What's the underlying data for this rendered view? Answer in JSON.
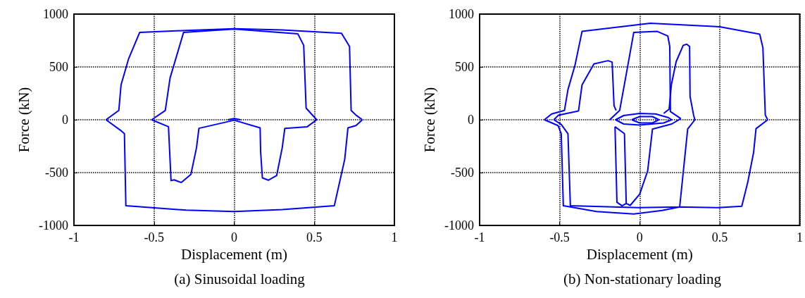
{
  "chart_data": [
    {
      "type": "line",
      "title": "(a) Sinusoidal loading",
      "xlabel": "Displacement (m)",
      "ylabel": "Force (kN)",
      "xlim": [
        -1,
        1
      ],
      "xticks": [
        -1,
        -0.5,
        0,
        0.5,
        1
      ],
      "ylim": [
        -1000,
        1000
      ],
      "yticks": [
        -1000,
        -500,
        0,
        500,
        1000
      ],
      "grid": true,
      "line_style": "solid",
      "series": [
        {
          "color": "#0000ff",
          "x": [
            -0.8,
            -0.72,
            -0.706,
            -0.66,
            -0.59,
            -0.3,
            0,
            0.3,
            0.67,
            0.72,
            0.73,
            0.76,
            0.8
          ],
          "values": [
            0,
            88,
            330,
            572,
            826,
            845,
            862,
            850,
            818,
            693,
            88,
            44,
            0
          ]
        },
        {
          "color": "#0000ff",
          "x": [
            0.8,
            0.76,
            0.71,
            0.69,
            0.625,
            0.3,
            0,
            -0.3,
            -0.676,
            -0.685,
            -0.71,
            -0.8
          ],
          "values": [
            0,
            -55,
            -77,
            -374,
            -814,
            -850,
            -869,
            -855,
            -814,
            -132,
            -99,
            0
          ]
        },
        {
          "color": "#0000ff",
          "x": [
            -0.515,
            -0.43,
            -0.4,
            -0.316,
            0,
            0.397,
            0.434,
            0.449,
            0.515
          ],
          "values": [
            0,
            88,
            396,
            826,
            858,
            814,
            704,
            110,
            0
          ]
        },
        {
          "color": "#0000ff",
          "x": [
            0.515,
            0.456,
            0.316,
            0.3,
            0.265,
            0.213,
            0.176,
            0.165,
            0.162,
            0
          ],
          "values": [
            0,
            -66,
            -81,
            -264,
            -528,
            -572,
            -550,
            -300,
            -77,
            -4
          ]
        },
        {
          "color": "#0000ff",
          "x": [
            0,
            -0.22,
            -0.235,
            -0.27,
            -0.33,
            -0.375,
            -0.394,
            -0.41,
            -0.515
          ],
          "values": [
            -4,
            -81,
            -264,
            -517,
            -594,
            -568,
            -576,
            -66,
            0
          ]
        },
        {
          "color": "#0000ff",
          "x": [
            -0.04,
            0,
            0.04
          ],
          "values": [
            0,
            12,
            0
          ]
        }
      ]
    },
    {
      "type": "line",
      "title": "(b) Non-stationary loading",
      "xlabel": "Displacement (m)",
      "ylabel": "Force (kN)",
      "xlim": [
        -1,
        1
      ],
      "xticks": [
        -1,
        -0.5,
        0,
        0.5,
        1
      ],
      "ylim": [
        -1000,
        1000
      ],
      "yticks": [
        -1000,
        -500,
        0,
        500,
        1000
      ],
      "grid": true,
      "line_style": "solid",
      "series": [
        {
          "color": "#0000ff",
          "x": [
            -0.595,
            -0.55,
            -0.47,
            -0.448,
            -0.404,
            -0.36,
            0.066,
            0.5,
            0.75,
            0.77,
            0.785,
            0.8
          ],
          "values": [
            0,
            55,
            88,
            286,
            517,
            836,
            913,
            880,
            810,
            682,
            44,
            0
          ]
        },
        {
          "color": "#0000ff",
          "x": [
            0.8,
            0.727,
            0.712,
            0.675,
            0.638,
            0.49,
            0.25,
            0.14,
            -0.037,
            -0.27,
            -0.477,
            -0.49,
            -0.51,
            -0.595
          ],
          "values": [
            0,
            -84,
            -308,
            -594,
            -818,
            -832,
            -825,
            -858,
            -891,
            -869,
            -814,
            -132,
            -55,
            0
          ]
        },
        {
          "color": "#0000ff",
          "x": [
            -0.147,
            -0.16,
            -0.172,
            -0.198,
            -0.286,
            -0.36,
            -0.382,
            -0.507,
            -0.536
          ],
          "values": [
            88,
            132,
            546,
            559,
            528,
            330,
            84,
            44,
            0
          ]
        },
        {
          "color": "#0000ff",
          "x": [
            -0.536,
            -0.49,
            -0.448,
            -0.433,
            -0.007,
            0.25,
            0.3,
            0.345
          ],
          "values": [
            0,
            -44,
            -132,
            -814,
            -832,
            -825,
            -88,
            0
          ]
        },
        {
          "color": "#0000ff",
          "x": [
            0.345,
            0.337,
            0.315,
            0.312,
            0.294,
            0.272,
            0.228,
            0.198,
            0.184,
            0.15
          ],
          "values": [
            0,
            44,
            220,
            693,
            715,
            704,
            550,
            330,
            100,
            60
          ]
        },
        {
          "color": "#0000ff",
          "x": [
            -0.187,
            -0.125,
            -0.088,
            -0.037,
            0.11,
            0.176,
            0.188,
            0.192,
            0.257
          ],
          "values": [
            0,
            88,
            396,
            826,
            836,
            792,
            693,
            77,
            11
          ]
        },
        {
          "color": "#0000ff",
          "x": [
            0.257,
            0.2,
            0.08,
            0.05,
            0,
            -0.059,
            -0.084,
            -0.095,
            -0.154
          ],
          "values": [
            11,
            -40,
            -88,
            -484,
            -704,
            -810,
            -792,
            -132,
            -66
          ]
        },
        {
          "color": "#0000ff",
          "x": [
            -0.154,
            -0.142,
            -0.11,
            -0.084
          ],
          "values": [
            -66,
            -781,
            -814,
            -792
          ]
        },
        {
          "color": "#0000ff",
          "x": [
            -0.15,
            -0.1,
            0,
            0.1,
            0.18,
            0.2
          ],
          "values": [
            0,
            40,
            60,
            55,
            20,
            0
          ]
        },
        {
          "color": "#0000ff",
          "x": [
            -0.15,
            -0.1,
            0,
            0.15,
            0.2
          ],
          "values": [
            0,
            -40,
            -50,
            -30,
            0
          ]
        },
        {
          "color": "#0000ff",
          "x": [
            -0.05,
            0,
            0.08,
            0.12
          ],
          "values": [
            0,
            30,
            30,
            0
          ]
        },
        {
          "color": "#0000ff",
          "x": [
            -0.05,
            0,
            0.08,
            0.12
          ],
          "values": [
            0,
            -30,
            -30,
            0
          ]
        }
      ]
    }
  ]
}
